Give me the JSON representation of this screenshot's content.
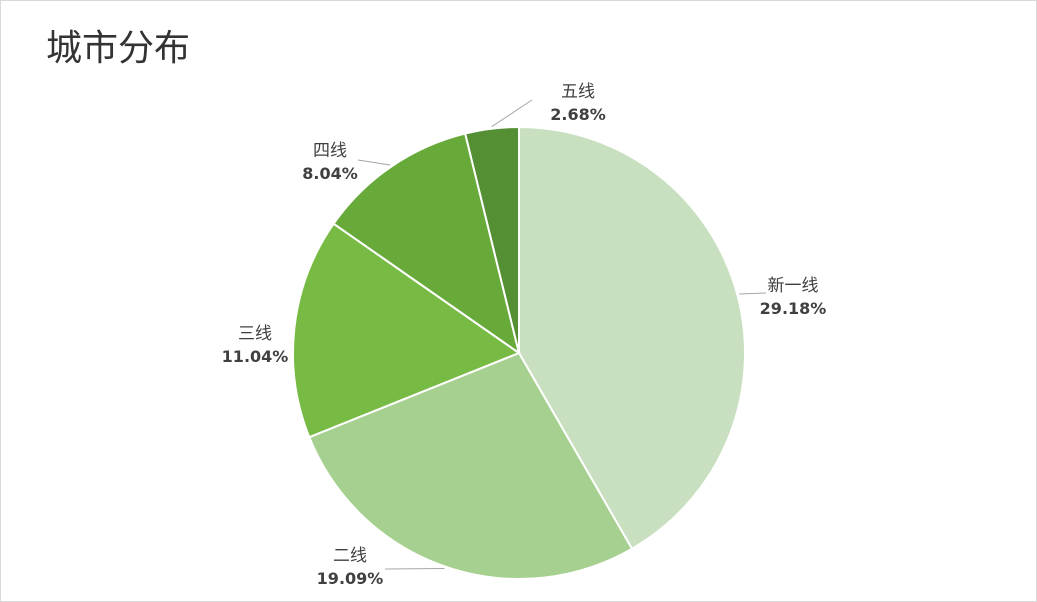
{
  "chart_data": {
    "type": "pie",
    "title": "城市分布",
    "categories": [
      "新一线",
      "二线",
      "三线",
      "四线",
      "五线"
    ],
    "values": [
      29.18,
      19.09,
      11.04,
      8.04,
      2.68
    ],
    "value_labels": [
      "29.18%",
      "19.09%",
      "11.04%",
      "8.04%",
      "2.68%"
    ],
    "colors": [
      "#c9e0c0",
      "#a6d08f",
      "#78bb44",
      "#67aa3a",
      "#548f33"
    ]
  }
}
